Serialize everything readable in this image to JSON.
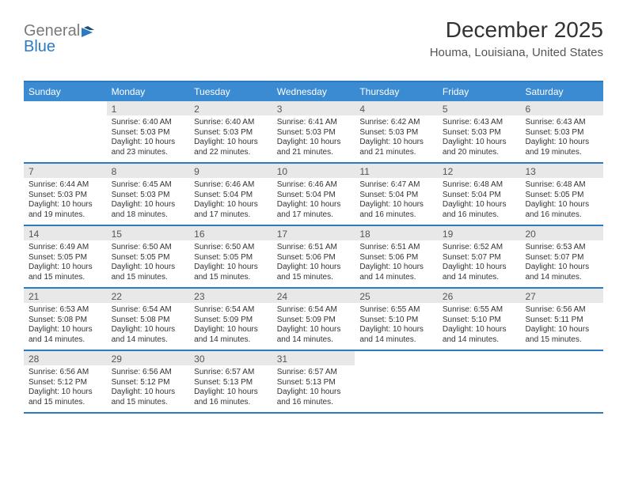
{
  "logo": {
    "text1": "General",
    "text2": "Blue"
  },
  "title": {
    "month_year": "December 2025",
    "location": "Houma, Louisiana, United States"
  },
  "colors": {
    "header_bg": "#3b8bd2",
    "header_text": "#ffffff",
    "border": "#2d7ac0",
    "daynum_bg": "#e8e8e8",
    "body_text": "#333333",
    "logo_gray": "#7a7a7a",
    "logo_blue": "#2d7ac0",
    "page_bg": "#ffffff"
  },
  "day_labels": [
    "Sunday",
    "Monday",
    "Tuesday",
    "Wednesday",
    "Thursday",
    "Friday",
    "Saturday"
  ],
  "weeks": [
    [
      {
        "num": "",
        "sunrise": "",
        "sunset": "",
        "daylight": ""
      },
      {
        "num": "1",
        "sunrise": "Sunrise: 6:40 AM",
        "sunset": "Sunset: 5:03 PM",
        "daylight": "Daylight: 10 hours and 23 minutes."
      },
      {
        "num": "2",
        "sunrise": "Sunrise: 6:40 AM",
        "sunset": "Sunset: 5:03 PM",
        "daylight": "Daylight: 10 hours and 22 minutes."
      },
      {
        "num": "3",
        "sunrise": "Sunrise: 6:41 AM",
        "sunset": "Sunset: 5:03 PM",
        "daylight": "Daylight: 10 hours and 21 minutes."
      },
      {
        "num": "4",
        "sunrise": "Sunrise: 6:42 AM",
        "sunset": "Sunset: 5:03 PM",
        "daylight": "Daylight: 10 hours and 21 minutes."
      },
      {
        "num": "5",
        "sunrise": "Sunrise: 6:43 AM",
        "sunset": "Sunset: 5:03 PM",
        "daylight": "Daylight: 10 hours and 20 minutes."
      },
      {
        "num": "6",
        "sunrise": "Sunrise: 6:43 AM",
        "sunset": "Sunset: 5:03 PM",
        "daylight": "Daylight: 10 hours and 19 minutes."
      }
    ],
    [
      {
        "num": "7",
        "sunrise": "Sunrise: 6:44 AM",
        "sunset": "Sunset: 5:03 PM",
        "daylight": "Daylight: 10 hours and 19 minutes."
      },
      {
        "num": "8",
        "sunrise": "Sunrise: 6:45 AM",
        "sunset": "Sunset: 5:03 PM",
        "daylight": "Daylight: 10 hours and 18 minutes."
      },
      {
        "num": "9",
        "sunrise": "Sunrise: 6:46 AM",
        "sunset": "Sunset: 5:04 PM",
        "daylight": "Daylight: 10 hours and 17 minutes."
      },
      {
        "num": "10",
        "sunrise": "Sunrise: 6:46 AM",
        "sunset": "Sunset: 5:04 PM",
        "daylight": "Daylight: 10 hours and 17 minutes."
      },
      {
        "num": "11",
        "sunrise": "Sunrise: 6:47 AM",
        "sunset": "Sunset: 5:04 PM",
        "daylight": "Daylight: 10 hours and 16 minutes."
      },
      {
        "num": "12",
        "sunrise": "Sunrise: 6:48 AM",
        "sunset": "Sunset: 5:04 PM",
        "daylight": "Daylight: 10 hours and 16 minutes."
      },
      {
        "num": "13",
        "sunrise": "Sunrise: 6:48 AM",
        "sunset": "Sunset: 5:05 PM",
        "daylight": "Daylight: 10 hours and 16 minutes."
      }
    ],
    [
      {
        "num": "14",
        "sunrise": "Sunrise: 6:49 AM",
        "sunset": "Sunset: 5:05 PM",
        "daylight": "Daylight: 10 hours and 15 minutes."
      },
      {
        "num": "15",
        "sunrise": "Sunrise: 6:50 AM",
        "sunset": "Sunset: 5:05 PM",
        "daylight": "Daylight: 10 hours and 15 minutes."
      },
      {
        "num": "16",
        "sunrise": "Sunrise: 6:50 AM",
        "sunset": "Sunset: 5:05 PM",
        "daylight": "Daylight: 10 hours and 15 minutes."
      },
      {
        "num": "17",
        "sunrise": "Sunrise: 6:51 AM",
        "sunset": "Sunset: 5:06 PM",
        "daylight": "Daylight: 10 hours and 15 minutes."
      },
      {
        "num": "18",
        "sunrise": "Sunrise: 6:51 AM",
        "sunset": "Sunset: 5:06 PM",
        "daylight": "Daylight: 10 hours and 14 minutes."
      },
      {
        "num": "19",
        "sunrise": "Sunrise: 6:52 AM",
        "sunset": "Sunset: 5:07 PM",
        "daylight": "Daylight: 10 hours and 14 minutes."
      },
      {
        "num": "20",
        "sunrise": "Sunrise: 6:53 AM",
        "sunset": "Sunset: 5:07 PM",
        "daylight": "Daylight: 10 hours and 14 minutes."
      }
    ],
    [
      {
        "num": "21",
        "sunrise": "Sunrise: 6:53 AM",
        "sunset": "Sunset: 5:08 PM",
        "daylight": "Daylight: 10 hours and 14 minutes."
      },
      {
        "num": "22",
        "sunrise": "Sunrise: 6:54 AM",
        "sunset": "Sunset: 5:08 PM",
        "daylight": "Daylight: 10 hours and 14 minutes."
      },
      {
        "num": "23",
        "sunrise": "Sunrise: 6:54 AM",
        "sunset": "Sunset: 5:09 PM",
        "daylight": "Daylight: 10 hours and 14 minutes."
      },
      {
        "num": "24",
        "sunrise": "Sunrise: 6:54 AM",
        "sunset": "Sunset: 5:09 PM",
        "daylight": "Daylight: 10 hours and 14 minutes."
      },
      {
        "num": "25",
        "sunrise": "Sunrise: 6:55 AM",
        "sunset": "Sunset: 5:10 PM",
        "daylight": "Daylight: 10 hours and 14 minutes."
      },
      {
        "num": "26",
        "sunrise": "Sunrise: 6:55 AM",
        "sunset": "Sunset: 5:10 PM",
        "daylight": "Daylight: 10 hours and 14 minutes."
      },
      {
        "num": "27",
        "sunrise": "Sunrise: 6:56 AM",
        "sunset": "Sunset: 5:11 PM",
        "daylight": "Daylight: 10 hours and 15 minutes."
      }
    ],
    [
      {
        "num": "28",
        "sunrise": "Sunrise: 6:56 AM",
        "sunset": "Sunset: 5:12 PM",
        "daylight": "Daylight: 10 hours and 15 minutes."
      },
      {
        "num": "29",
        "sunrise": "Sunrise: 6:56 AM",
        "sunset": "Sunset: 5:12 PM",
        "daylight": "Daylight: 10 hours and 15 minutes."
      },
      {
        "num": "30",
        "sunrise": "Sunrise: 6:57 AM",
        "sunset": "Sunset: 5:13 PM",
        "daylight": "Daylight: 10 hours and 16 minutes."
      },
      {
        "num": "31",
        "sunrise": "Sunrise: 6:57 AM",
        "sunset": "Sunset: 5:13 PM",
        "daylight": "Daylight: 10 hours and 16 minutes."
      },
      {
        "num": "",
        "sunrise": "",
        "sunset": "",
        "daylight": ""
      },
      {
        "num": "",
        "sunrise": "",
        "sunset": "",
        "daylight": ""
      },
      {
        "num": "",
        "sunrise": "",
        "sunset": "",
        "daylight": ""
      }
    ]
  ]
}
